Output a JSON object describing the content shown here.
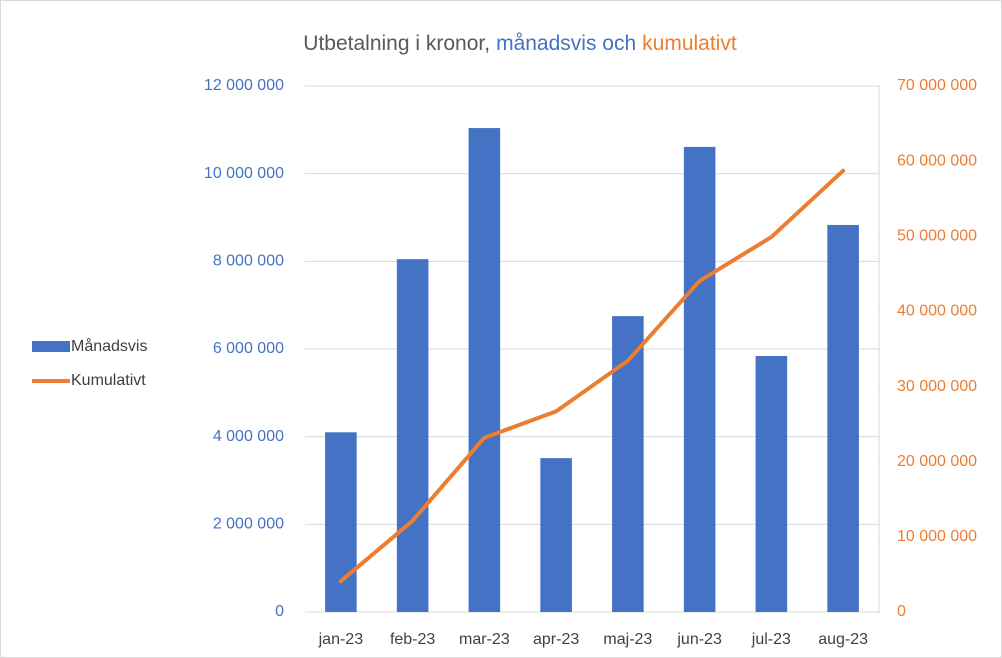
{
  "chart_data": {
    "type": "bar",
    "title": [
      "Utbetalning i kronor,",
      "månadsvis och",
      "kumulativt"
    ],
    "title_colors": [
      "#595959",
      "#4472c4",
      "#ed7d31"
    ],
    "categories": [
      "jan-23",
      "feb-23",
      "mar-23",
      "apr-23",
      "maj-23",
      "jun-23",
      "jul-23",
      "aug-23"
    ],
    "series": [
      {
        "name": "Månadsvis",
        "color": "#4472c4",
        "type": "bar",
        "values": [
          4100000,
          8050000,
          11040000,
          3510000,
          6750000,
          10610000,
          5840000,
          8830000
        ]
      },
      {
        "name": "Kumulativt",
        "color": "#ed7d31",
        "type": "line",
        "axis": "y2",
        "values": [
          4100000,
          12150000,
          23190000,
          26700000,
          33450000,
          44060000,
          49900000,
          58730000
        ]
      }
    ],
    "ylim": [
      0,
      12000000
    ],
    "yticks": [
      0,
      {
        "value": 2000000,
        "label": "2 000 000"
      },
      {
        "value": 4000000,
        "label": "4 000 000"
      },
      {
        "value": 6000000,
        "label": "6 000 000"
      },
      {
        "value": 8000000,
        "label": "8 000 000"
      },
      {
        "value": 10000000,
        "label": "10 000 000"
      },
      {
        "value": 12000000,
        "label": "12 000 000"
      }
    ],
    "y2lim": [
      0,
      70000000
    ],
    "y2ticks": [
      0,
      {
        "value": 10000000,
        "label": "10 000 000"
      },
      {
        "value": 20000000,
        "label": "20 000 000"
      },
      {
        "value": 30000000,
        "label": "30 000 000"
      },
      {
        "value": 40000000,
        "label": "40 000 000"
      },
      {
        "value": 50000000,
        "label": "50 000 000"
      },
      {
        "value": 60000000,
        "label": "60 000 000"
      },
      {
        "value": 70000000,
        "label": "70 000 000"
      }
    ],
    "grid": true,
    "legend": "left"
  }
}
